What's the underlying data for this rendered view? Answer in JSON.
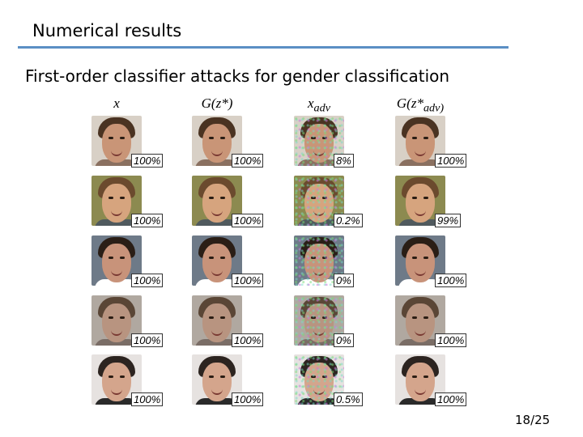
{
  "slide": {
    "title": "Numerical results",
    "subtitle": "First-order classifier attacks for gender classification",
    "page": "18/25"
  },
  "columns": [
    {
      "label_base": "x",
      "label_sub": ""
    },
    {
      "label_base": "G(z*)",
      "label_sub": ""
    },
    {
      "label_base": "x",
      "label_sub": "adv"
    },
    {
      "label_base": "G(z*",
      "label_sub": "adv)"
    }
  ],
  "rows": [
    {
      "scores": [
        "100%",
        "100%",
        "8%",
        "100%"
      ]
    },
    {
      "scores": [
        "100%",
        "100%",
        "0.2%",
        "99%"
      ]
    },
    {
      "scores": [
        "100%",
        "100%",
        "0%",
        "100%"
      ]
    },
    {
      "scores": [
        "100%",
        "100%",
        "0%",
        "100%"
      ]
    },
    {
      "scores": [
        "100%",
        "100%",
        "0.5%",
        "100%"
      ]
    }
  ],
  "colors": {
    "rule": "#5b8fc4",
    "hair": [
      "#4a3322",
      "#6b4a2e",
      "#2a1e16",
      "#5a4636",
      "#2c2420"
    ],
    "skin": [
      "#c99577",
      "#d6a47e",
      "#c8937a",
      "#b89480",
      "#d4a58c"
    ],
    "shirt": [
      "#8a7060",
      "#505a5e",
      "#ffffff",
      "#7a6d66",
      "#2a2a2a"
    ],
    "bg": [
      "#d8d0c6",
      "#8c8a50",
      "#6e7a88",
      "#b0a8a0",
      "#e6e2e0"
    ]
  }
}
